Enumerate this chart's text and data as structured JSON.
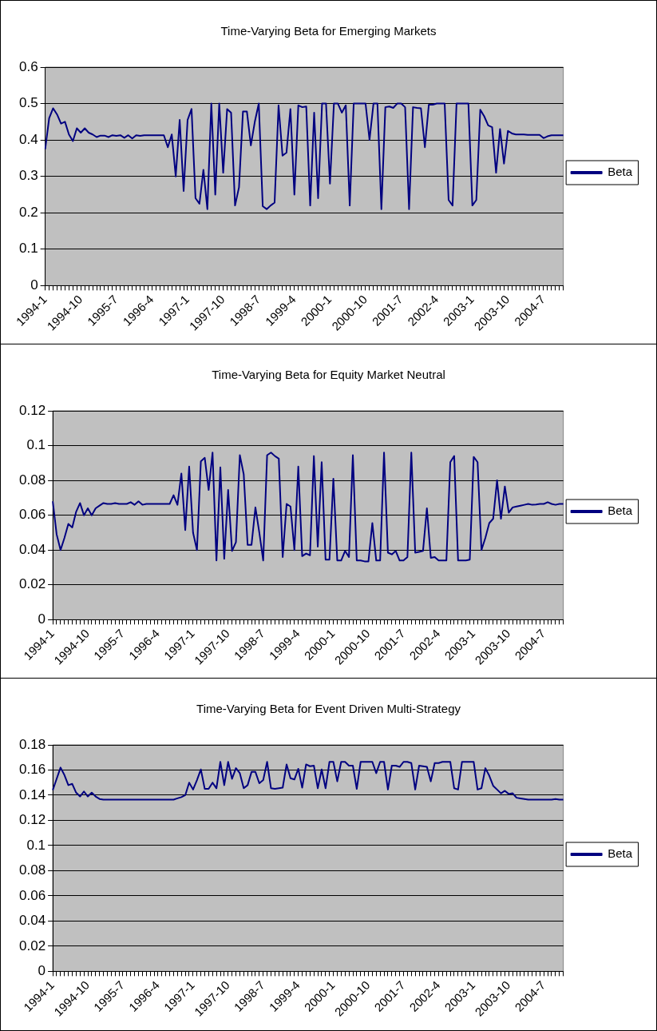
{
  "chart_data": [
    {
      "type": "line",
      "title": "Time-Varying Beta for Emerging Markets",
      "categories": [
        "1994-1",
        null,
        null,
        null,
        null,
        null,
        null,
        null,
        null,
        "1994-10",
        null,
        null,
        null,
        null,
        null,
        null,
        null,
        null,
        "1995-7",
        null,
        null,
        null,
        null,
        null,
        null,
        null,
        null,
        "1996-4",
        null,
        null,
        null,
        null,
        null,
        null,
        null,
        null,
        "1997-1",
        null,
        null,
        null,
        null,
        null,
        null,
        null,
        null,
        "1997-10",
        null,
        null,
        null,
        null,
        null,
        null,
        null,
        null,
        "1998-7",
        null,
        null,
        null,
        null,
        null,
        null,
        null,
        null,
        "1999-4",
        null,
        null,
        null,
        null,
        null,
        null,
        null,
        null,
        "2000-1",
        null,
        null,
        null,
        null,
        null,
        null,
        null,
        null,
        "2000-10",
        null,
        null,
        null,
        null,
        null,
        null,
        null,
        null,
        "2001-7",
        null,
        null,
        null,
        null,
        null,
        null,
        null,
        null,
        "2002-4",
        null,
        null,
        null,
        null,
        null,
        null,
        null,
        null,
        "2003-1",
        null,
        null,
        null,
        null,
        null,
        null,
        null,
        null,
        "2003-10",
        null,
        null,
        null,
        null,
        null,
        null,
        null,
        null,
        "2004-7",
        null,
        null,
        null,
        null,
        null
      ],
      "series": [
        {
          "name": "Beta",
          "color": "#000080",
          "values": [
            0.375,
            0.46,
            0.487,
            0.47,
            0.445,
            0.45,
            0.415,
            0.397,
            0.432,
            0.42,
            0.432,
            0.42,
            0.415,
            0.408,
            0.412,
            0.412,
            0.408,
            0.413,
            0.411,
            0.413,
            0.406,
            0.413,
            0.404,
            0.413,
            0.411,
            0.413,
            0.413,
            0.413,
            0.413,
            0.413,
            0.413,
            0.38,
            0.415,
            0.3,
            0.455,
            0.26,
            0.455,
            0.485,
            0.24,
            0.225,
            0.318,
            0.21,
            0.5,
            0.25,
            0.5,
            0.31,
            0.485,
            0.475,
            0.22,
            0.27,
            0.478,
            0.478,
            0.385,
            0.45,
            0.5,
            0.218,
            0.21,
            0.22,
            0.228,
            0.495,
            0.357,
            0.365,
            0.485,
            0.25,
            0.495,
            0.49,
            0.492,
            0.22,
            0.475,
            0.24,
            0.5,
            0.5,
            0.28,
            0.5,
            0.5,
            0.475,
            0.495,
            0.22,
            0.5,
            0.5,
            0.5,
            0.5,
            0.4,
            0.5,
            0.5,
            0.21,
            0.49,
            0.492,
            0.488,
            0.5,
            0.5,
            0.49,
            0.21,
            0.49,
            0.488,
            0.487,
            0.38,
            0.497,
            0.497,
            0.5,
            0.5,
            0.5,
            0.235,
            0.22,
            0.5,
            0.5,
            0.5,
            0.5,
            0.22,
            0.235,
            0.483,
            0.465,
            0.44,
            0.435,
            0.31,
            0.43,
            0.335,
            0.425,
            0.418,
            0.415,
            0.415,
            0.415,
            0.414,
            0.414,
            0.414,
            0.414,
            0.405,
            0.41,
            0.413,
            0.413,
            0.413,
            0.413
          ]
        }
      ],
      "ylim": [
        0,
        0.6
      ],
      "yticks": [
        0,
        0.1,
        0.2,
        0.3,
        0.4,
        0.5,
        0.6
      ],
      "grid": "y",
      "legend": "right"
    },
    {
      "type": "line",
      "title": "Time-Varying Beta for Equity Market Neutral",
      "categories": [
        "1994-1",
        null,
        null,
        null,
        null,
        null,
        null,
        null,
        null,
        "1994-10",
        null,
        null,
        null,
        null,
        null,
        null,
        null,
        null,
        "1995-7",
        null,
        null,
        null,
        null,
        null,
        null,
        null,
        null,
        "1996-4",
        null,
        null,
        null,
        null,
        null,
        null,
        null,
        null,
        "1997-1",
        null,
        null,
        null,
        null,
        null,
        null,
        null,
        null,
        "1997-10",
        null,
        null,
        null,
        null,
        null,
        null,
        null,
        null,
        "1998-7",
        null,
        null,
        null,
        null,
        null,
        null,
        null,
        null,
        "1999-4",
        null,
        null,
        null,
        null,
        null,
        null,
        null,
        null,
        "2000-1",
        null,
        null,
        null,
        null,
        null,
        null,
        null,
        null,
        "2000-10",
        null,
        null,
        null,
        null,
        null,
        null,
        null,
        null,
        "2001-7",
        null,
        null,
        null,
        null,
        null,
        null,
        null,
        null,
        "2002-4",
        null,
        null,
        null,
        null,
        null,
        null,
        null,
        null,
        "2003-1",
        null,
        null,
        null,
        null,
        null,
        null,
        null,
        null,
        "2003-10",
        null,
        null,
        null,
        null,
        null,
        null,
        null,
        null,
        "2004-7",
        null,
        null,
        null,
        null,
        null
      ],
      "series": [
        {
          "name": "Beta",
          "color": "#000080",
          "values": [
            0.068,
            0.049,
            0.04,
            0.047,
            0.055,
            0.053,
            0.062,
            0.067,
            0.06,
            0.064,
            0.06,
            0.064,
            0.0655,
            0.067,
            0.0665,
            0.0665,
            0.067,
            0.0665,
            0.0665,
            0.0665,
            0.0675,
            0.066,
            0.068,
            0.066,
            0.0665,
            0.0665,
            0.0665,
            0.0665,
            0.0665,
            0.0665,
            0.0665,
            0.0715,
            0.066,
            0.084,
            0.0515,
            0.088,
            0.05,
            0.04,
            0.091,
            0.093,
            0.0745,
            0.096,
            0.034,
            0.0875,
            0.035,
            0.0745,
            0.0395,
            0.0445,
            0.0945,
            0.0835,
            0.043,
            0.043,
            0.0645,
            0.05,
            0.034,
            0.0945,
            0.096,
            0.094,
            0.0925,
            0.036,
            0.0665,
            0.065,
            0.04,
            0.088,
            0.0365,
            0.038,
            0.037,
            0.094,
            0.042,
            0.0905,
            0.0345,
            0.0345,
            0.081,
            0.034,
            0.034,
            0.0395,
            0.036,
            0.0945,
            0.034,
            0.034,
            0.0335,
            0.0335,
            0.0555,
            0.034,
            0.034,
            0.096,
            0.0385,
            0.0375,
            0.0395,
            0.034,
            0.034,
            0.036,
            0.096,
            0.0385,
            0.039,
            0.0395,
            0.064,
            0.0355,
            0.036,
            0.034,
            0.034,
            0.034,
            0.0905,
            0.094,
            0.034,
            0.034,
            0.034,
            0.0345,
            0.0935,
            0.0905,
            0.04,
            0.047,
            0.0555,
            0.058,
            0.08,
            0.058,
            0.0765,
            0.0615,
            0.0645,
            0.065,
            0.0655,
            0.066,
            0.0665,
            0.066,
            0.0662,
            0.0665,
            0.0665,
            0.0675,
            0.0665,
            0.066,
            0.0665,
            0.0665
          ]
        }
      ],
      "ylim": [
        0,
        0.12
      ],
      "yticks": [
        0,
        0.02,
        0.04,
        0.06,
        0.08,
        0.1,
        0.12
      ],
      "grid": "y",
      "legend": "right"
    },
    {
      "type": "line",
      "title": "Time-Varying Beta for Event Driven Multi-Strategy",
      "categories": [
        "1994-1",
        null,
        null,
        null,
        null,
        null,
        null,
        null,
        null,
        "1994-10",
        null,
        null,
        null,
        null,
        null,
        null,
        null,
        null,
        "1995-7",
        null,
        null,
        null,
        null,
        null,
        null,
        null,
        null,
        "1996-4",
        null,
        null,
        null,
        null,
        null,
        null,
        null,
        null,
        "1997-1",
        null,
        null,
        null,
        null,
        null,
        null,
        null,
        null,
        "1997-10",
        null,
        null,
        null,
        null,
        null,
        null,
        null,
        null,
        "1998-7",
        null,
        null,
        null,
        null,
        null,
        null,
        null,
        null,
        "1999-4",
        null,
        null,
        null,
        null,
        null,
        null,
        null,
        null,
        "2000-1",
        null,
        null,
        null,
        null,
        null,
        null,
        null,
        null,
        "2000-10",
        null,
        null,
        null,
        null,
        null,
        null,
        null,
        null,
        "2001-7",
        null,
        null,
        null,
        null,
        null,
        null,
        null,
        null,
        "2002-4",
        null,
        null,
        null,
        null,
        null,
        null,
        null,
        null,
        "2003-1",
        null,
        null,
        null,
        null,
        null,
        null,
        null,
        null,
        "2003-10",
        null,
        null,
        null,
        null,
        null,
        null,
        null,
        null,
        "2004-7",
        null,
        null,
        null,
        null,
        null
      ],
      "series": [
        {
          "name": "Beta",
          "color": "#000080",
          "values": [
            0.144,
            0.153,
            0.162,
            0.156,
            0.148,
            0.149,
            0.142,
            0.139,
            0.143,
            0.139,
            0.142,
            0.139,
            0.137,
            0.1365,
            0.1365,
            0.1365,
            0.1365,
            0.1365,
            0.1365,
            0.1365,
            0.1365,
            0.1365,
            0.1365,
            0.1365,
            0.1365,
            0.1365,
            0.1365,
            0.1365,
            0.1365,
            0.1365,
            0.1365,
            0.1365,
            0.1375,
            0.1385,
            0.14,
            0.15,
            0.1445,
            0.152,
            0.1605,
            0.145,
            0.145,
            0.15,
            0.1455,
            0.1665,
            0.148,
            0.1665,
            0.153,
            0.1615,
            0.1575,
            0.1455,
            0.148,
            0.1585,
            0.1585,
            0.1495,
            0.152,
            0.1665,
            0.1455,
            0.145,
            0.1455,
            0.146,
            0.1645,
            0.1535,
            0.1525,
            0.161,
            0.146,
            0.1645,
            0.163,
            0.1635,
            0.1455,
            0.1605,
            0.1455,
            0.1665,
            0.1665,
            0.151,
            0.1665,
            0.1665,
            0.1635,
            0.1635,
            0.145,
            0.1665,
            0.1665,
            0.1665,
            0.1665,
            0.1575,
            0.1665,
            0.1665,
            0.1445,
            0.1635,
            0.1635,
            0.1625,
            0.1665,
            0.1665,
            0.1655,
            0.1445,
            0.1635,
            0.163,
            0.1625,
            0.151,
            0.1655,
            0.1655,
            0.1665,
            0.1665,
            0.1665,
            0.1455,
            0.1445,
            0.1665,
            0.1665,
            0.1665,
            0.1665,
            0.1445,
            0.1455,
            0.1615,
            0.1555,
            0.1475,
            0.1445,
            0.1415,
            0.1435,
            0.141,
            0.1415,
            0.138,
            0.1375,
            0.137,
            0.1365,
            0.1365,
            0.1365,
            0.1365,
            0.1365,
            0.1365,
            0.1365,
            0.137,
            0.1365,
            0.1365
          ]
        }
      ],
      "ylim": [
        0,
        0.18
      ],
      "yticks": [
        0,
        0.02,
        0.04,
        0.06,
        0.08,
        0.1,
        0.12,
        0.14,
        0.16,
        0.18
      ],
      "grid": "y",
      "legend": "right"
    }
  ]
}
